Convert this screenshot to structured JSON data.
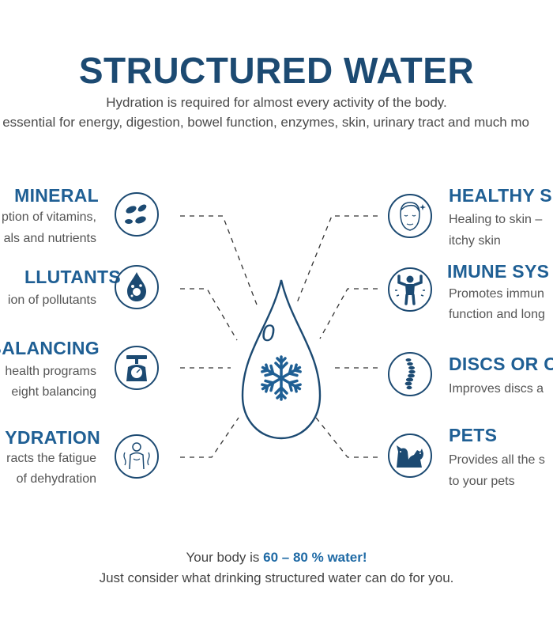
{
  "title": "STRUCTURED WATER",
  "subtitle_line1": "Hydration is required for almost every activity of the body.",
  "subtitle_line2": "s essential for energy, digestion, bowel function, enzymes, skin, urinary tract and much mo",
  "left_items": [
    {
      "heading": "MINERAL",
      "line1": "ption of vitamins,",
      "line2": "als and nutrients",
      "icon": "pills-icon"
    },
    {
      "heading": "LLUTANTS",
      "line1": "ion of pollutants",
      "line2": "",
      "icon": "water-drop-germs-icon"
    },
    {
      "heading": "BALANCING",
      "line1": "health programs",
      "line2": "eight balancing",
      "icon": "scale-icon"
    },
    {
      "heading": "YDRATION",
      "line1": "racts the fatigue",
      "line2": "of dehydration",
      "icon": "body-outline-icon"
    }
  ],
  "right_items": [
    {
      "heading": "HEALTHY S",
      "line1": "Healing to skin –",
      "line2": "itchy skin",
      "icon": "face-icon"
    },
    {
      "heading": "IMUNE SYS",
      "line1": "Promotes immun",
      "line2": "function and long",
      "icon": "strong-man-icon"
    },
    {
      "heading": "DISCS OR C",
      "line1": "Improves discs a",
      "line2": "",
      "icon": "spine-icon"
    },
    {
      "heading": "PETS",
      "line1": "Provides all the s",
      "line2": "to your pets",
      "icon": "pets-icon"
    }
  ],
  "center": {
    "drop_letter": "0",
    "icon": "snowflake-icon"
  },
  "footer_prefix": "Your body is ",
  "footer_highlight": "60 – 80 % water!",
  "footer_line2": "Just consider what drinking structured water can do for you.",
  "colors": {
    "title": "#1c4a72",
    "heading": "#1f5f94",
    "icon": "#1c4a72",
    "highlight": "#1f6aa5"
  }
}
